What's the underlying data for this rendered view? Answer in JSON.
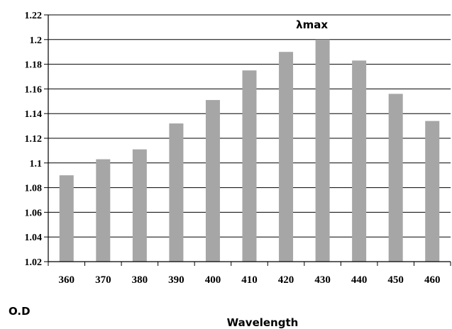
{
  "chart_data": {
    "type": "bar",
    "categories": [
      "360",
      "370",
      "380",
      "390",
      "400",
      "410",
      "420",
      "430",
      "440",
      "450",
      "460"
    ],
    "values": [
      1.09,
      1.103,
      1.111,
      1.132,
      1.151,
      1.175,
      1.19,
      1.2,
      1.183,
      1.156,
      1.134
    ],
    "xlabel": "Wavelength",
    "ylabel": "O.D",
    "ylim": [
      1.02,
      1.22
    ],
    "yticks": [
      "1.02",
      "1.04",
      "1.06",
      "1.08",
      "1.1",
      "1.12",
      "1.14",
      "1.16",
      "1.18",
      "1.2",
      "1.22"
    ],
    "annotation": "λmax",
    "bar_color": "#a6a6a6",
    "grid": true
  }
}
